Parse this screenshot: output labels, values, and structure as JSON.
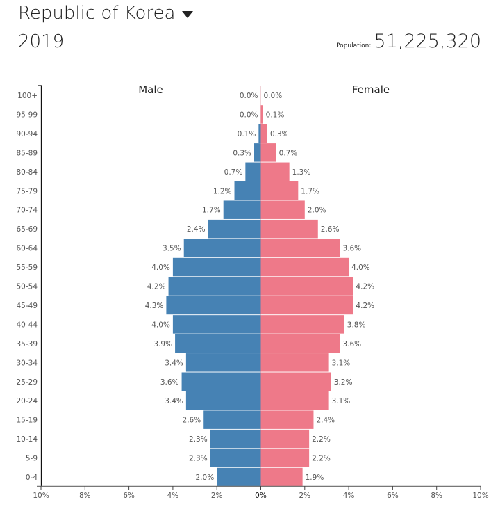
{
  "header": {
    "country": "Republic of Korea",
    "year": "2019",
    "population_label": "Population:",
    "population_value": "51,225,320"
  },
  "chart_data": {
    "type": "bar",
    "subtype": "population-pyramid",
    "categories": [
      "0-4",
      "5-9",
      "10-14",
      "15-19",
      "20-24",
      "25-29",
      "30-34",
      "35-39",
      "40-44",
      "45-49",
      "50-54",
      "55-59",
      "60-64",
      "65-69",
      "70-74",
      "75-79",
      "80-84",
      "85-89",
      "90-94",
      "95-99",
      "100+"
    ],
    "series": [
      {
        "name": "Male",
        "color": "#4682b4",
        "values": [
          2.0,
          2.3,
          2.3,
          2.6,
          3.4,
          3.6,
          3.4,
          3.9,
          4.0,
          4.3,
          4.2,
          4.0,
          3.5,
          2.4,
          1.7,
          1.2,
          0.7,
          0.3,
          0.1,
          0.0,
          0.0
        ]
      },
      {
        "name": "Female",
        "color": "#ee7989",
        "values": [
          1.9,
          2.2,
          2.2,
          2.4,
          3.1,
          3.2,
          3.1,
          3.6,
          3.8,
          4.2,
          4.2,
          4.0,
          3.6,
          2.6,
          2.0,
          1.7,
          1.3,
          0.7,
          0.3,
          0.1,
          0.0
        ]
      }
    ],
    "xticks": [
      "10%",
      "8%",
      "6%",
      "4%",
      "2%",
      "0%",
      "2%",
      "4%",
      "6%",
      "8%",
      "10%"
    ],
    "xlim": [
      -10,
      10
    ],
    "unit": "%"
  }
}
